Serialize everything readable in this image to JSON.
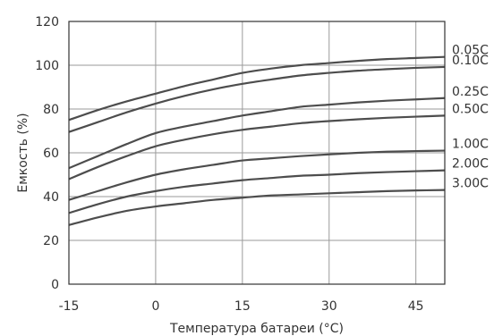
{
  "chart_data": {
    "type": "line",
    "title": "",
    "xlabel": "Температура батареи (°C)",
    "ylabel": "Емкость (%)",
    "xlim": [
      -15,
      50
    ],
    "ylim": [
      0,
      120
    ],
    "x_ticks": [
      -15,
      0,
      15,
      30,
      45
    ],
    "y_ticks": [
      0,
      20,
      40,
      60,
      80,
      100,
      120
    ],
    "x_tick_labels": [
      "-15",
      "0",
      "15",
      "30",
      "45"
    ],
    "y_tick_labels": [
      "0",
      "20",
      "40",
      "60",
      "80",
      "100",
      "120"
    ],
    "grid": true,
    "series": [
      {
        "name": "0.05C",
        "x": [
          -15,
          -10,
          -5,
          0,
          5,
          10,
          15,
          20,
          25,
          30,
          35,
          40,
          45,
          50
        ],
        "values": [
          75,
          79.5,
          83.5,
          87,
          90.5,
          93.5,
          96.5,
          98.5,
          100,
          101,
          102,
          102.8,
          103.3,
          103.8
        ]
      },
      {
        "name": "0.10C",
        "x": [
          -15,
          -10,
          -5,
          0,
          5,
          10,
          15,
          20,
          25,
          30,
          35,
          40,
          45,
          50
        ],
        "values": [
          69.5,
          74,
          78.5,
          82.5,
          86,
          89,
          91.5,
          93.5,
          95.3,
          96.5,
          97.5,
          98.2,
          98.8,
          99.2
        ]
      },
      {
        "name": "0.25C",
        "x": [
          -15,
          -10,
          -5,
          0,
          5,
          10,
          15,
          20,
          25,
          30,
          35,
          40,
          45,
          50
        ],
        "values": [
          53,
          58.5,
          64,
          69,
          72,
          74.5,
          77,
          79,
          81,
          82,
          83,
          83.8,
          84.4,
          85
        ]
      },
      {
        "name": "0.50C",
        "x": [
          -15,
          -10,
          -5,
          0,
          5,
          10,
          15,
          20,
          25,
          30,
          35,
          40,
          45,
          50
        ],
        "values": [
          48,
          53.5,
          58.5,
          63,
          66,
          68.5,
          70.5,
          72,
          73.5,
          74.5,
          75.3,
          76,
          76.5,
          77
        ]
      },
      {
        "name": "1.00C",
        "x": [
          -15,
          -10,
          -5,
          0,
          5,
          10,
          15,
          20,
          25,
          30,
          35,
          40,
          45,
          50
        ],
        "values": [
          38.5,
          42.5,
          46.5,
          50,
          52.5,
          54.5,
          56.5,
          57.5,
          58.5,
          59.3,
          60,
          60.5,
          60.8,
          61
        ]
      },
      {
        "name": "2.00C",
        "x": [
          -15,
          -10,
          -5,
          0,
          5,
          10,
          15,
          20,
          25,
          30,
          35,
          40,
          45,
          50
        ],
        "values": [
          32.5,
          36.5,
          40,
          42.5,
          44.5,
          46,
          47.5,
          48.5,
          49.5,
          50,
          50.7,
          51.2,
          51.6,
          52
        ]
      },
      {
        "name": "3.00C",
        "x": [
          -15,
          -10,
          -5,
          0,
          5,
          10,
          15,
          20,
          25,
          30,
          35,
          40,
          45,
          50
        ],
        "values": [
          27,
          30.5,
          33.5,
          35.5,
          37,
          38.5,
          39.5,
          40.5,
          41,
          41.5,
          42,
          42.5,
          42.8,
          43
        ]
      }
    ]
  }
}
